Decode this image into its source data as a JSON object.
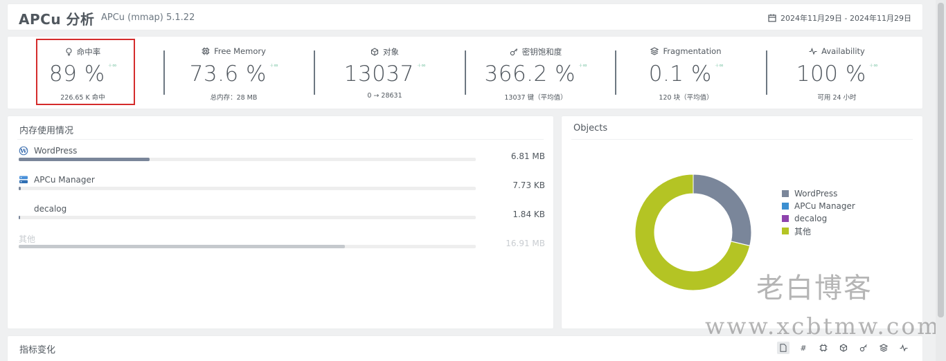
{
  "header": {
    "title": "APCu 分析",
    "subtitle": "APCu (mmap) 5.1.22",
    "date_range": "2024年11月29日 - 2024年11月29日",
    "date_icon": "calendar-icon"
  },
  "kpis": [
    {
      "icon": "lightbulb-icon",
      "label": "命中率",
      "value": "89 %",
      "trend": "+∞",
      "sub": "226.65 K 命中"
    },
    {
      "icon": "cpu-chip-icon",
      "label": "Free Memory",
      "value": "73.6 %",
      "trend": "+∞",
      "sub": "总内存：28 MB"
    },
    {
      "icon": "cube-icon",
      "label": "对象",
      "value": "13037",
      "trend": "+∞",
      "sub": "0 → 28631"
    },
    {
      "icon": "key-icon",
      "label": "密钥饱和度",
      "value": "366.2 %",
      "trend": "+∞",
      "sub": "13037 键（平均值）"
    },
    {
      "icon": "layers-icon",
      "label": "Fragmentation",
      "value": "0.1 %",
      "trend": "+∞",
      "sub": "120 块（平均值）"
    },
    {
      "icon": "pulse-icon",
      "label": "Availability",
      "value": "100 %",
      "trend": "+∞",
      "sub": "可用 24 小时"
    }
  ],
  "memory": {
    "title": "内存使用情况",
    "rows": [
      {
        "name": "WordPress",
        "icon": "wordpress-icon",
        "size": "6.81 MB",
        "fill": 0.287
      },
      {
        "name": "APCu Manager",
        "icon": "server-icon",
        "size": "7.73 KB",
        "fill": 0.004
      },
      {
        "name": "decalog",
        "icon": "",
        "size": "1.84 KB",
        "fill": 0.002
      },
      {
        "name": "其他",
        "icon": "",
        "size": "16.91 MB",
        "fill": 0.713
      }
    ]
  },
  "objects": {
    "title": "Objects",
    "legend": [
      {
        "label": "WordPress",
        "color": "#7a869a"
      },
      {
        "label": "APCu Manager",
        "color": "#3b8fd1"
      },
      {
        "label": "decalog",
        "color": "#8e44ad"
      },
      {
        "label": "其他",
        "color": "#b4c424"
      }
    ],
    "chart_data": {
      "type": "pie",
      "categories": [
        "WordPress",
        "APCu Manager",
        "decalog",
        "其他"
      ],
      "values": [
        28.7,
        0.03,
        0.01,
        71.26
      ]
    }
  },
  "watermark": {
    "line1": "老白博客",
    "line2": "www.xcbtmw.com"
  },
  "changes": {
    "title": "指标变化",
    "buttons": [
      "document-icon",
      "hash-icon",
      "cpu-chip-icon",
      "cube-icon",
      "key-icon",
      "layers-icon",
      "pulse-icon"
    ]
  }
}
